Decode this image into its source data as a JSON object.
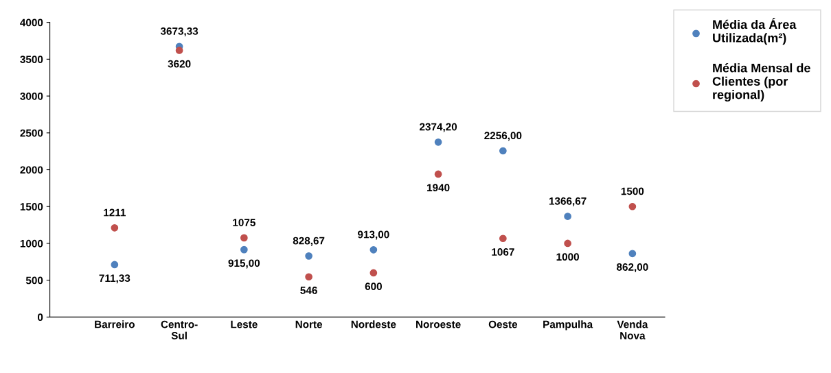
{
  "chart_data": {
    "type": "scatter",
    "categories": [
      "Barreiro",
      "Centro-\nSul",
      "Leste",
      "Norte",
      "Nordeste",
      "Noroeste",
      "Oeste",
      "Pampulha",
      "Venda\nNova"
    ],
    "series": [
      {
        "name": "Média da Área\nUtilizada(m²)",
        "color": "#4f81bd",
        "values": [
          711.33,
          3673.33,
          915.0,
          828.67,
          913.0,
          2374.2,
          2256.0,
          1366.67,
          862.0
        ],
        "value_labels": [
          "711,33",
          "3673,33",
          "915,00",
          "828,67",
          "913,00",
          "2374,20",
          "2256,00",
          "1366,67",
          "862,00"
        ]
      },
      {
        "name": "Média Mensal de\nClientes (por\nregional)",
        "color": "#c0504d",
        "values": [
          1211,
          3620,
          1075,
          546,
          600,
          1940,
          1067,
          1000,
          1500
        ],
        "value_labels": [
          "1211",
          "3620",
          "1075",
          "546",
          "600",
          "1940",
          "1067",
          "1000",
          "1500"
        ]
      }
    ],
    "ylim": [
      0,
      4000
    ],
    "yticks": [
      0,
      500,
      1000,
      1500,
      2000,
      2500,
      3000,
      3500,
      4000
    ],
    "marker": "circle",
    "legend": "top right",
    "grid": false
  }
}
